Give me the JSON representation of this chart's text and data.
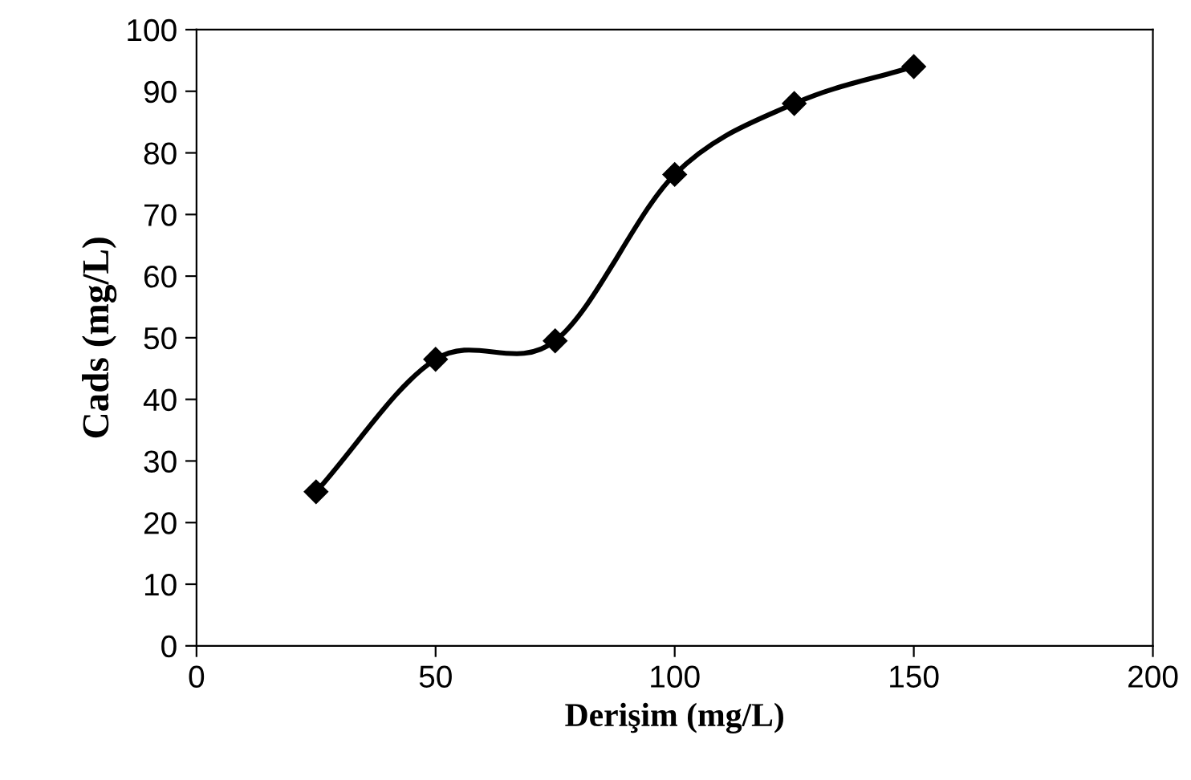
{
  "chart_data": {
    "type": "line",
    "xlabel": "Derişim (mg/L)",
    "ylabel": "Cads (mg/L)",
    "x": [
      25,
      50,
      75,
      100,
      125,
      150
    ],
    "series": [
      {
        "color": "#000000",
        "values": [
          25,
          46.5,
          49.5,
          76.5,
          88,
          94
        ]
      }
    ],
    "xlim": [
      0,
      200
    ],
    "xticks": [
      0,
      50,
      100,
      150,
      200
    ],
    "ylim": [
      0,
      100
    ],
    "yticks": [
      0,
      10,
      20,
      30,
      40,
      50,
      60,
      70,
      80,
      90,
      100
    ],
    "marker": "diamond",
    "line_style": "solid",
    "grid": false,
    "legend": false
  }
}
